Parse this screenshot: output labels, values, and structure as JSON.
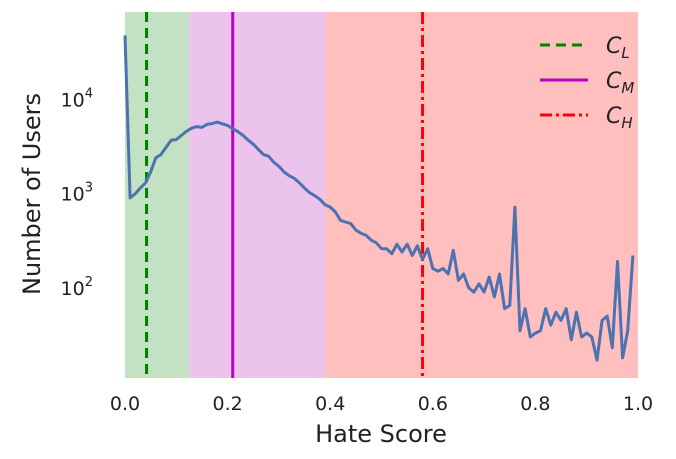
{
  "chart_data": {
    "type": "line",
    "xlabel": "Hate Score",
    "ylabel": "Number of Users",
    "xlim": [
      0.0,
      1.0
    ],
    "ylim": [
      11,
      85000
    ],
    "yscale": "log",
    "grid": false,
    "legend_position": "top-right",
    "x_ticks": [
      "0.0",
      "0.2",
      "0.4",
      "0.6",
      "0.8",
      "1.0"
    ],
    "y_ticks": [
      {
        "base": "10",
        "exp": "2",
        "value": 100
      },
      {
        "base": "10",
        "exp": "3",
        "value": 1000
      },
      {
        "base": "10",
        "exp": "4",
        "value": 10000
      }
    ],
    "regions": [
      {
        "from": 0.0,
        "to": 0.125,
        "color": "#c3e1c3"
      },
      {
        "from": 0.125,
        "to": 0.39,
        "color": "#ecc3ec"
      },
      {
        "from": 0.39,
        "to": 1.0,
        "color": "#ffbfbf"
      }
    ],
    "thresholds": [
      {
        "name": "C",
        "sub": "L",
        "x": 0.042,
        "color": "#008000",
        "dash": "10,6"
      },
      {
        "name": "C",
        "sub": "M",
        "x": 0.21,
        "color": "#c000c0",
        "dash": ""
      },
      {
        "name": "C",
        "sub": "H",
        "x": 0.58,
        "color": "#ff0000",
        "dash": "12,4,3,4"
      }
    ],
    "series": [
      {
        "color": "#4c72b0",
        "points": [
          [
            0.0,
            48000
          ],
          [
            0.01,
            900
          ],
          [
            0.02,
            1000
          ],
          [
            0.03,
            1150
          ],
          [
            0.04,
            1300
          ],
          [
            0.05,
            1700
          ],
          [
            0.06,
            2400
          ],
          [
            0.07,
            2600
          ],
          [
            0.08,
            3100
          ],
          [
            0.09,
            3700
          ],
          [
            0.1,
            3750
          ],
          [
            0.11,
            4150
          ],
          [
            0.12,
            4600
          ],
          [
            0.13,
            4950
          ],
          [
            0.14,
            5150
          ],
          [
            0.15,
            5050
          ],
          [
            0.16,
            5450
          ],
          [
            0.17,
            5550
          ],
          [
            0.18,
            5750
          ],
          [
            0.19,
            5500
          ],
          [
            0.2,
            5300
          ],
          [
            0.21,
            4900
          ],
          [
            0.22,
            4550
          ],
          [
            0.23,
            4150
          ],
          [
            0.24,
            3700
          ],
          [
            0.25,
            3350
          ],
          [
            0.26,
            2950
          ],
          [
            0.27,
            2600
          ],
          [
            0.28,
            2500
          ],
          [
            0.29,
            2150
          ],
          [
            0.3,
            1950
          ],
          [
            0.31,
            1700
          ],
          [
            0.32,
            1550
          ],
          [
            0.33,
            1450
          ],
          [
            0.34,
            1300
          ],
          [
            0.35,
            1150
          ],
          [
            0.36,
            1020
          ],
          [
            0.37,
            950
          ],
          [
            0.38,
            870
          ],
          [
            0.39,
            760
          ],
          [
            0.4,
            720
          ],
          [
            0.41,
            640
          ],
          [
            0.42,
            520
          ],
          [
            0.43,
            500
          ],
          [
            0.44,
            480
          ],
          [
            0.45,
            410
          ],
          [
            0.46,
            380
          ],
          [
            0.47,
            360
          ],
          [
            0.48,
            320
          ],
          [
            0.49,
            300
          ],
          [
            0.5,
            260
          ],
          [
            0.51,
            260
          ],
          [
            0.52,
            230
          ],
          [
            0.53,
            290
          ],
          [
            0.54,
            240
          ],
          [
            0.55,
            290
          ],
          [
            0.56,
            220
          ],
          [
            0.57,
            280
          ],
          [
            0.58,
            200
          ],
          [
            0.59,
            260
          ],
          [
            0.6,
            160
          ],
          [
            0.61,
            150
          ],
          [
            0.62,
            160
          ],
          [
            0.63,
            140
          ],
          [
            0.64,
            250
          ],
          [
            0.65,
            120
          ],
          [
            0.66,
            140
          ],
          [
            0.67,
            100
          ],
          [
            0.68,
            90
          ],
          [
            0.69,
            110
          ],
          [
            0.7,
            90
          ],
          [
            0.71,
            130
          ],
          [
            0.72,
            80
          ],
          [
            0.73,
            140
          ],
          [
            0.74,
            60
          ],
          [
            0.75,
            65
          ],
          [
            0.76,
            720
          ],
          [
            0.77,
            35
          ],
          [
            0.78,
            60
          ],
          [
            0.79,
            30
          ],
          [
            0.8,
            33
          ],
          [
            0.81,
            35
          ],
          [
            0.82,
            60
          ],
          [
            0.83,
            40
          ],
          [
            0.84,
            55
          ],
          [
            0.85,
            45
          ],
          [
            0.86,
            60
          ],
          [
            0.87,
            28
          ],
          [
            0.88,
            55
          ],
          [
            0.89,
            30
          ],
          [
            0.9,
            33
          ],
          [
            0.91,
            30
          ],
          [
            0.92,
            17
          ],
          [
            0.93,
            45
          ],
          [
            0.94,
            50
          ],
          [
            0.95,
            23
          ],
          [
            0.96,
            190
          ],
          [
            0.97,
            18
          ],
          [
            0.98,
            35
          ],
          [
            0.99,
            220
          ]
        ]
      }
    ]
  }
}
